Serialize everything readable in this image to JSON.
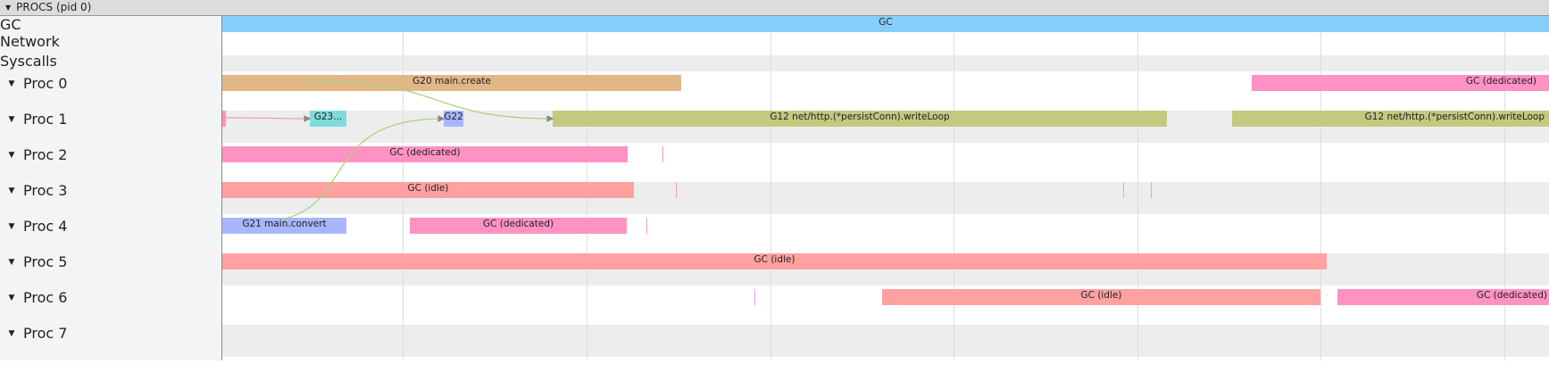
{
  "header": {
    "title": "PROCS (pid 0)",
    "expand_icon": "triangle-down-icon"
  },
  "rows": {
    "gc": "GC",
    "network": "Network",
    "syscalls": "Syscalls",
    "procs": [
      "Proc 0",
      "Proc 1",
      "Proc 2",
      "Proc 3",
      "Proc 4",
      "Proc 5",
      "Proc 6",
      "Proc 7"
    ]
  },
  "slices": {
    "gc": "GC",
    "g20": "G20 main.create",
    "gc_dedicated": "GC (dedicated)",
    "g23": "G23...",
    "g22": "G22",
    "g12": "G12 net/http.(*persistConn).writeLoop",
    "gc_idle": "GC (idle)",
    "g21": "G21 main.convert"
  },
  "colors": {
    "gc": "#87cefa",
    "g20": "#e2b788",
    "dedicated": "#ff92c2",
    "idle": "#ffa1a1",
    "g12": "#c3c97f",
    "g23": "#7fdcdc",
    "g21": "#a9b5fc",
    "flow": "#a7d37c"
  }
}
